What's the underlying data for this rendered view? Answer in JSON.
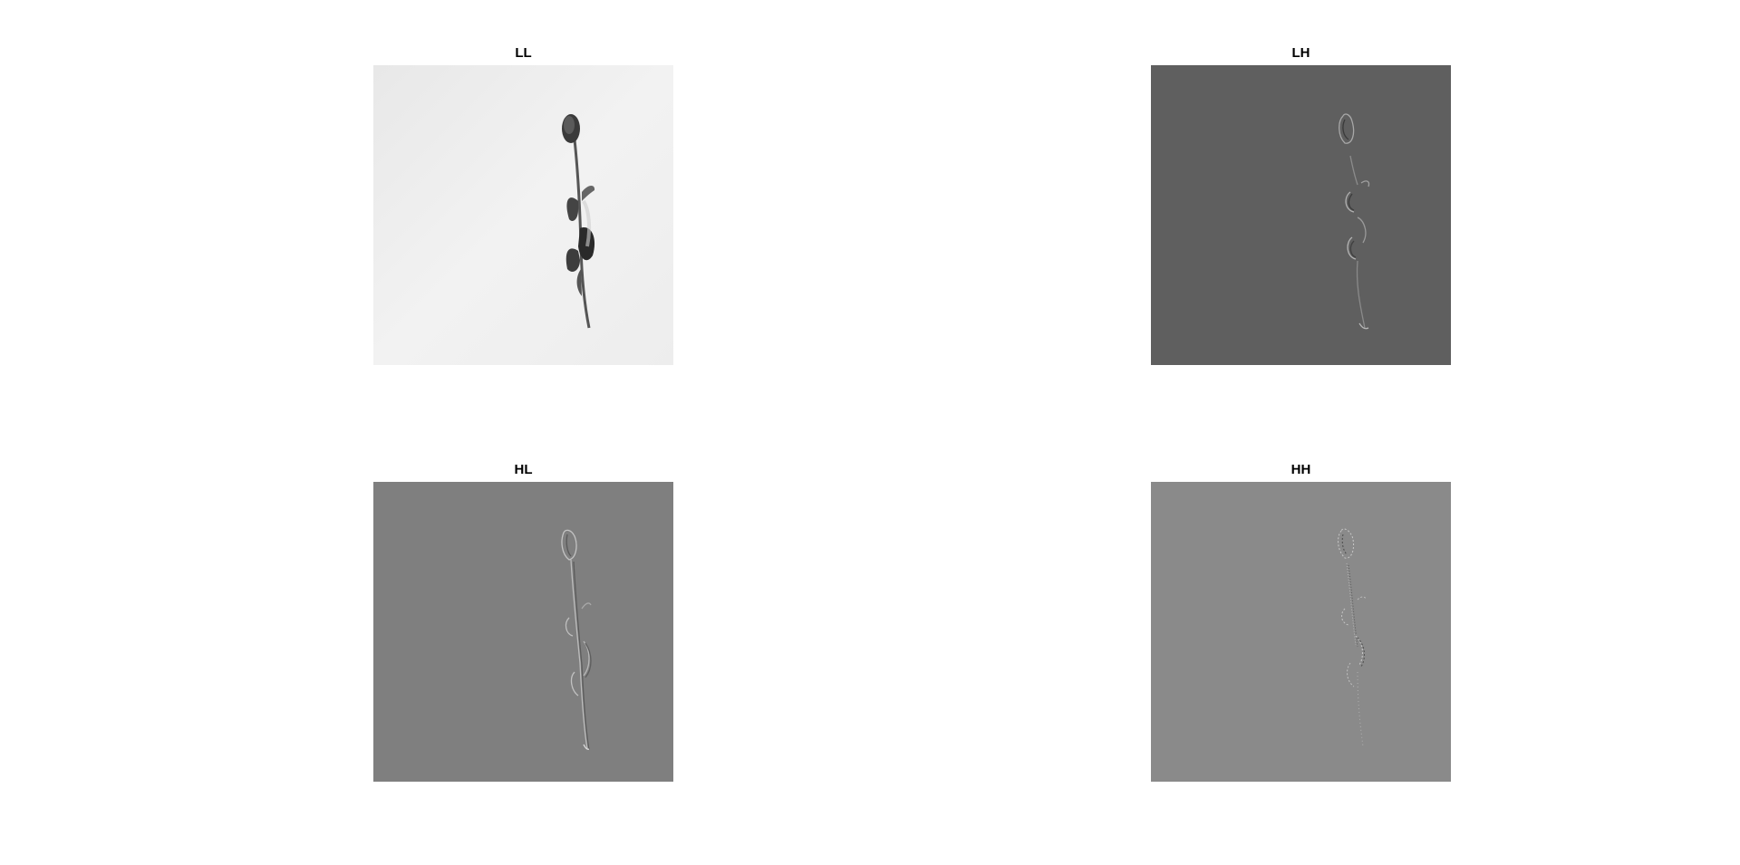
{
  "figure": {
    "panels": [
      {
        "id": "ll",
        "title": "LL",
        "background": "#efefef",
        "description_icon": "flower-image"
      },
      {
        "id": "lh",
        "title": "LH",
        "background": "#5f5f5f",
        "description_icon": "flower-image"
      },
      {
        "id": "hl",
        "title": "HL",
        "background": "#7f7f7f",
        "description_icon": "flower-image"
      },
      {
        "id": "hh",
        "title": "HH",
        "background": "#8a8a8a",
        "description_icon": "flower-image"
      }
    ]
  }
}
